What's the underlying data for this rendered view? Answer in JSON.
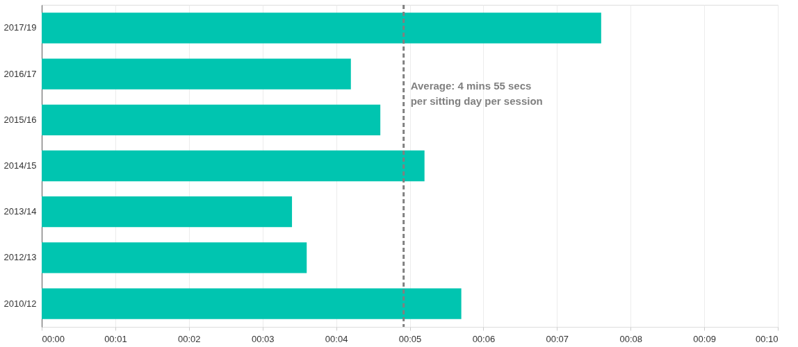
{
  "chart_data": {
    "type": "bar",
    "orientation": "horizontal",
    "categories": [
      "2017/19",
      "2016/17",
      "2015/16",
      "2014/15",
      "2013/14",
      "2012/13",
      "2010/12"
    ],
    "values": [
      7.6,
      4.2,
      4.6,
      5.2,
      3.4,
      3.6,
      5.7
    ],
    "color": "#00c5b0",
    "xlim": [
      0,
      10
    ],
    "xticks": [
      {
        "value": 0,
        "label": "00:00"
      },
      {
        "value": 1,
        "label": "00:01"
      },
      {
        "value": 2,
        "label": "00:02"
      },
      {
        "value": 3,
        "label": "00:03"
      },
      {
        "value": 4,
        "label": "00:04"
      },
      {
        "value": 5,
        "label": "00:05"
      },
      {
        "value": 6,
        "label": "00:06"
      },
      {
        "value": 7,
        "label": "00:07"
      },
      {
        "value": 8,
        "label": "00:08"
      },
      {
        "value": 9,
        "label": "00:09"
      },
      {
        "value": 10,
        "label": "00:10"
      }
    ],
    "grid": "x",
    "ref_lines": [
      {
        "axis": "x",
        "value": 4.9167,
        "color": "#808080",
        "line_style": "dashed"
      }
    ],
    "annotations": [
      "Average: 4 mins 55 secs\nper sitting day per session"
    ]
  }
}
